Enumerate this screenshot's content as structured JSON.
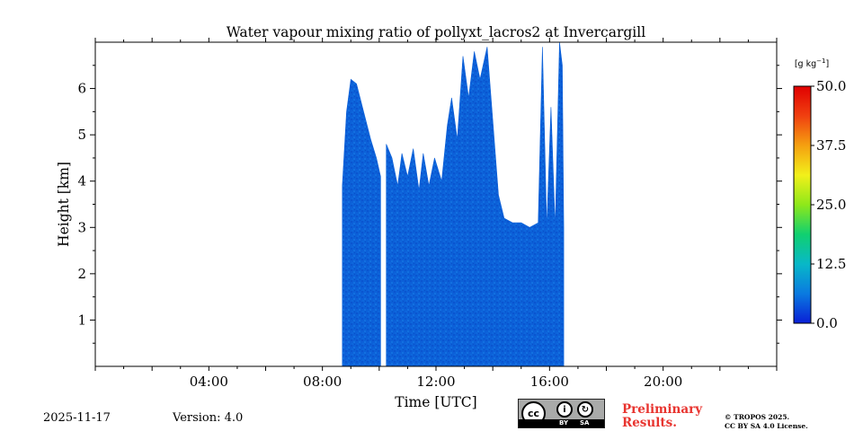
{
  "chart_data": {
    "type": "heatmap",
    "title": "Water vapour mixing ratio of pollyxt_lacros2 at Invercargill",
    "xlabel": "Time [UTC]",
    "ylabel": "Height [km]",
    "xlim_hours": [
      0,
      24
    ],
    "ylim_km": [
      0,
      7
    ],
    "x_ticks": [
      {
        "value": 4,
        "label": "04:00"
      },
      {
        "value": 8,
        "label": "08:00"
      },
      {
        "value": 12,
        "label": "12:00"
      },
      {
        "value": 16,
        "label": "16:00"
      },
      {
        "value": 20,
        "label": "20:00"
      }
    ],
    "y_ticks": [
      {
        "value": 1,
        "label": "1"
      },
      {
        "value": 2,
        "label": "2"
      },
      {
        "value": 3,
        "label": "3"
      },
      {
        "value": 4,
        "label": "4"
      },
      {
        "value": 5,
        "label": "5"
      },
      {
        "value": 6,
        "label": "6"
      }
    ],
    "colorbar": {
      "label": "[g kg",
      "label_exp": "−1",
      "label_end": "]",
      "range": [
        0,
        50
      ],
      "ticks": [
        "50.0",
        "37.5",
        "25.0",
        "12.5",
        "0.0"
      ],
      "tick_values": [
        50,
        37.5,
        25,
        12.5,
        0
      ],
      "colormap": [
        "#0a1fd6",
        "#0a7ae0",
        "#08b8c8",
        "#10d070",
        "#8ee81a",
        "#f2f01a",
        "#f5a010",
        "#f04010",
        "#e00000"
      ]
    },
    "signal_color_main": "#0c60d8",
    "signal_profile": {
      "description": "measured signal top height (km) vs time (h); absent outside listed segments",
      "segments": [
        {
          "points": [
            [
              8.7,
              3.9
            ],
            [
              8.85,
              5.5
            ],
            [
              9.0,
              6.2
            ],
            [
              9.2,
              6.1
            ],
            [
              9.45,
              5.5
            ],
            [
              9.7,
              4.9
            ],
            [
              9.9,
              4.5
            ],
            [
              10.05,
              4.1
            ]
          ]
        },
        {
          "points": [
            [
              10.25,
              4.8
            ],
            [
              10.45,
              4.5
            ],
            [
              10.65,
              3.9
            ],
            [
              10.8,
              4.6
            ],
            [
              11.0,
              4.1
            ],
            [
              11.2,
              4.7
            ],
            [
              11.4,
              3.8
            ],
            [
              11.55,
              4.6
            ],
            [
              11.75,
              3.9
            ],
            [
              11.95,
              4.5
            ],
            [
              12.2,
              4.0
            ],
            [
              12.4,
              5.2
            ],
            [
              12.55,
              5.8
            ],
            [
              12.75,
              4.9
            ],
            [
              12.95,
              6.7
            ],
            [
              13.15,
              5.8
            ],
            [
              13.35,
              6.8
            ],
            [
              13.55,
              6.2
            ],
            [
              13.8,
              6.9
            ],
            [
              14.0,
              5.3
            ],
            [
              14.2,
              3.7
            ],
            [
              14.4,
              3.2
            ],
            [
              14.7,
              3.1
            ],
            [
              15.0,
              3.1
            ],
            [
              15.3,
              3.0
            ],
            [
              15.6,
              3.1
            ],
            [
              15.75,
              6.9
            ],
            [
              15.9,
              3.0
            ],
            [
              16.05,
              5.6
            ],
            [
              16.2,
              3.0
            ],
            [
              16.35,
              7.0
            ],
            [
              16.45,
              6.5
            ],
            [
              16.5,
              3.0
            ]
          ]
        }
      ]
    }
  },
  "footer": {
    "date": "2025-11-17",
    "version": "Version: 4.0",
    "preliminary_line1": "Preliminary",
    "preliminary_line2": "Results.",
    "copyright_line1": "© TROPOS 2025.",
    "copyright_line2": "CC BY SA 4.0 License.",
    "license_badge": {
      "cc": "cc",
      "by": "BY",
      "sa": "SA"
    }
  }
}
